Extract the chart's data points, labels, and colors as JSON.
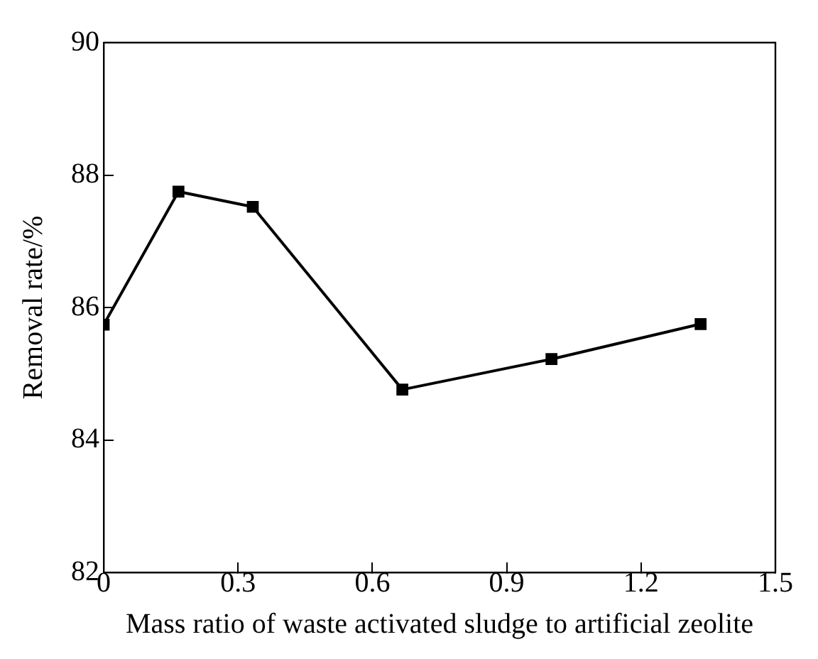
{
  "chart_data": {
    "type": "line",
    "xlabel": "Mass ratio of waste activated sludge to artificial zeolite",
    "ylabel": "Removal rate/%",
    "x": [
      0,
      0.167,
      0.333,
      0.667,
      1.0,
      1.333
    ],
    "series": [
      {
        "color": "#000000",
        "values": [
          85.74,
          87.75,
          87.52,
          84.76,
          85.22,
          85.75
        ]
      }
    ],
    "xlim": [
      0,
      1.5
    ],
    "xticks": [
      0,
      0.3,
      0.6,
      0.9,
      1.2,
      1.5
    ],
    "ylim": [
      82,
      90
    ],
    "yticks": [
      82,
      84,
      86,
      88,
      90
    ],
    "grid": false,
    "legend": false,
    "marker": "square",
    "line_style": "solid"
  }
}
